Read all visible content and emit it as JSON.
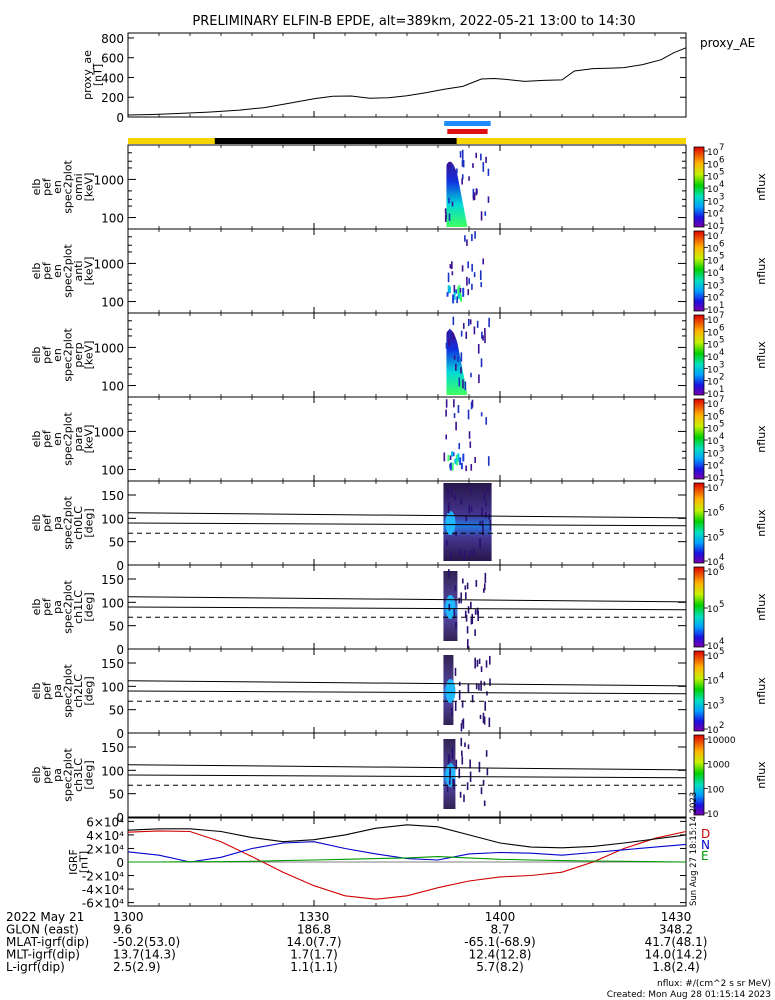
{
  "chart_data": {
    "type": "line",
    "title": "PRELIMINARY ELFIN-B EPDE, alt=389km, 2022-05-21 13:00 to 14:30",
    "time_range_minutes": [
      0,
      90
    ],
    "panels": [
      {
        "name": "proxy_ae",
        "ylabel": [
          "proxy_ae",
          "[nT]"
        ],
        "series_label": "proxy_AE",
        "ylim": [
          0,
          850
        ],
        "yticks": [
          "0",
          "200",
          "400",
          "600",
          "800"
        ],
        "ytick_values": [
          0,
          200,
          400,
          600,
          800
        ],
        "x": [
          0,
          4,
          8,
          13,
          18,
          22,
          26,
          30,
          33,
          36,
          39,
          42,
          45,
          48,
          51,
          54,
          57,
          59,
          61,
          64,
          67,
          70,
          72,
          75,
          78,
          80,
          83,
          86,
          88,
          90
        ],
        "values": [
          20,
          25,
          35,
          50,
          70,
          95,
          140,
          185,
          210,
          212,
          190,
          195,
          215,
          245,
          280,
          310,
          385,
          390,
          380,
          360,
          370,
          375,
          465,
          490,
          495,
          500,
          530,
          580,
          650,
          700
        ]
      },
      {
        "name": "omni",
        "type": "heatmap",
        "ylabel": [
          "elb",
          "pef",
          "en",
          "spec2plot",
          "omni",
          "[keV]"
        ],
        "ylog": true,
        "yticks": [
          "100",
          "1000"
        ],
        "colorbar": {
          "label": "nflux",
          "ticks": [
            "10",
            "10",
            "10",
            "10",
            "10",
            "10",
            "10"
          ],
          "exponents": [
            "1",
            "2",
            "3",
            "4",
            "5",
            "6",
            "7"
          ]
        }
      },
      {
        "name": "anti",
        "type": "heatmap",
        "ylabel": [
          "elb",
          "pef",
          "en",
          "spec2plot",
          "anti",
          "[keV]"
        ],
        "ylog": true,
        "yticks": [
          "100",
          "1000"
        ],
        "colorbar": {
          "label": "nflux",
          "ticks": [
            "10",
            "10",
            "10",
            "10",
            "10",
            "10",
            "10"
          ],
          "exponents": [
            "1",
            "2",
            "3",
            "4",
            "5",
            "6",
            "7"
          ]
        }
      },
      {
        "name": "perp",
        "type": "heatmap",
        "ylabel": [
          "elb",
          "pef",
          "en",
          "spec2plot",
          "perp",
          "[keV]"
        ],
        "ylog": true,
        "yticks": [
          "100",
          "1000"
        ],
        "colorbar": {
          "label": "nflux",
          "ticks": [
            "10",
            "10",
            "10",
            "10",
            "10",
            "10",
            "10"
          ],
          "exponents": [
            "1",
            "2",
            "3",
            "4",
            "5",
            "6",
            "7"
          ]
        }
      },
      {
        "name": "para",
        "type": "heatmap",
        "ylabel": [
          "elb",
          "pef",
          "en",
          "spec2plot",
          "para",
          "[keV]"
        ],
        "ylog": true,
        "yticks": [
          "100",
          "1000"
        ],
        "colorbar": {
          "label": "nflux",
          "ticks": [
            "10",
            "10",
            "10",
            "10",
            "10",
            "10",
            "10"
          ],
          "exponents": [
            "1",
            "2",
            "3",
            "4",
            "5",
            "6",
            "7"
          ]
        }
      },
      {
        "name": "ch0LC",
        "type": "heatmap",
        "ylabel": [
          "elb",
          "pef",
          "pa",
          "spec2plot",
          "ch0LC",
          "[deg]"
        ],
        "yticks": [
          "0",
          "50",
          "100",
          "150"
        ],
        "colorbar": {
          "label": "nflux",
          "ticks": [
            "10",
            "10",
            "10",
            "10"
          ],
          "exponents": [
            "4",
            "5",
            "6",
            "7"
          ]
        }
      },
      {
        "name": "ch1LC",
        "type": "heatmap",
        "ylabel": [
          "elb",
          "pef",
          "pa",
          "spec2plot",
          "ch1LC",
          "[deg]"
        ],
        "yticks": [
          "0",
          "50",
          "100",
          "150"
        ],
        "colorbar": {
          "label": "nflux",
          "ticks": [
            "10",
            "10",
            "10"
          ],
          "exponents": [
            "4",
            "5",
            "6"
          ]
        }
      },
      {
        "name": "ch2LC",
        "type": "heatmap",
        "ylabel": [
          "elb",
          "pef",
          "pa",
          "spec2plot",
          "ch2LC",
          "[deg]"
        ],
        "yticks": [
          "0",
          "50",
          "100",
          "150"
        ],
        "colorbar": {
          "label": "nflux",
          "ticks": [
            "10",
            "10",
            "10",
            "10"
          ],
          "exponents": [
            "2",
            "3",
            "4",
            "5"
          ]
        }
      },
      {
        "name": "ch3LC",
        "type": "heatmap",
        "ylabel": [
          "elb",
          "pef",
          "pa",
          "spec2plot",
          "ch3LC",
          "[deg]"
        ],
        "yticks": [
          "0",
          "50",
          "100",
          "150"
        ],
        "colorbar": {
          "label": "nflux",
          "ticks": [
            "10",
            "100",
            "1000",
            "10000"
          ]
        }
      },
      {
        "name": "IGRF",
        "ylabel": [
          "IGRF",
          "[nT]"
        ],
        "yticks": [
          "-6×10⁴",
          "-4×10⁴",
          "-2×10⁴",
          "0",
          "2×10⁴",
          "4×10⁴",
          "6×10⁴"
        ],
        "ytick_values": [
          -60000,
          -40000,
          -20000,
          0,
          20000,
          40000,
          60000
        ],
        "ylim": [
          -65000,
          65000
        ],
        "legend": [
          "D",
          "N",
          "E"
        ],
        "x": [
          0,
          5,
          10,
          15,
          20,
          25,
          30,
          35,
          40,
          45,
          50,
          55,
          60,
          65,
          70,
          75,
          80,
          85,
          90
        ],
        "series": [
          {
            "name": "D",
            "color": "#d00000",
            "values": [
              44000,
              46000,
              45000,
              30000,
              8000,
              -15000,
              -35000,
              -50000,
              -55000,
              -50000,
              -38000,
              -28000,
              -22000,
              -20000,
              -15000,
              0,
              20000,
              35000,
              45000
            ]
          },
          {
            "name": "N",
            "color": "#0000cc",
            "values": [
              15000,
              10000,
              0,
              7000,
              20000,
              28000,
              30000,
              20000,
              12000,
              5000,
              3000,
              12000,
              14000,
              13000,
              10000,
              14000,
              18000,
              22000,
              26000
            ]
          },
          {
            "name": "E",
            "color": "#009900",
            "values": [
              0,
              0,
              500,
              500,
              1000,
              2000,
              3000,
              4000,
              5000,
              6000,
              8000,
              6000,
              4000,
              3000,
              2000,
              1500,
              1000,
              500,
              0
            ]
          },
          {
            "name": "total",
            "color": "#000000",
            "values": [
              47000,
              49000,
              49000,
              45000,
              36000,
              30000,
              33000,
              40000,
              50000,
              55000,
              52000,
              40000,
              28000,
              22000,
              21000,
              23000,
              28000,
              34000,
              40000
            ]
          }
        ]
      }
    ],
    "xticks": [
      "1300",
      "1330",
      "1400",
      "1430"
    ],
    "xtick_minutes": [
      0,
      30,
      60,
      90
    ]
  },
  "footer": {
    "rows": [
      {
        "label": "2022 May 21",
        "values": [
          "1300",
          "1330",
          "1400",
          "1430"
        ]
      },
      {
        "label": "GLON (east)",
        "values": [
          "9.6",
          "186.8",
          "8.7",
          "348.2"
        ]
      },
      {
        "label": "MLAT-igrf(dip)",
        "values": [
          "-50.2(53.0)",
          "14.0(7.7)",
          "-65.1(-68.9)",
          "41.7(48.1)"
        ]
      },
      {
        "label": "MLT-igrf(dip)",
        "values": [
          "13.7(14.3)",
          "1.7(1.7)",
          "12.4(12.8)",
          "14.0(14.2)"
        ]
      },
      {
        "label": "L-igrf(dip)",
        "values": [
          "2.5(2.9)",
          "1.1(1.1)",
          "5.7(8.2)",
          "1.8(2.4)"
        ]
      }
    ],
    "units_note": "nflux: #/(cm^2 s sr MeV)",
    "created": "Created: Mon Aug 28 01:15:14 2023",
    "side_stamp": "Sun Aug 27 18:15:14 2023"
  }
}
